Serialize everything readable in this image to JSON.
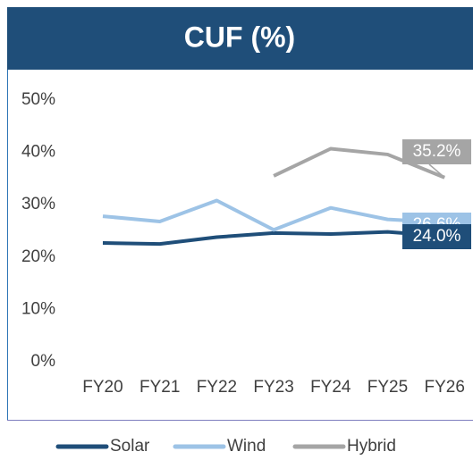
{
  "chart_data": {
    "type": "line",
    "title": "CUF (%)",
    "categories": [
      "FY20",
      "FY21",
      "FY22",
      "FY23",
      "FY24",
      "FY25",
      "FY26"
    ],
    "series": [
      {
        "name": "Solar",
        "color": "#1f4e79",
        "values": [
          22.7,
          22.5,
          23.8,
          24.6,
          24.4,
          24.8,
          24.0
        ],
        "value_labels": [
          null,
          null,
          null,
          null,
          null,
          null,
          "24.0%"
        ]
      },
      {
        "name": "Wind",
        "color": "#9dc3e6",
        "values": [
          27.8,
          26.8,
          30.8,
          25.2,
          29.4,
          27.2,
          26.6
        ],
        "value_labels": [
          null,
          null,
          null,
          null,
          null,
          null,
          "26.6%"
        ]
      },
      {
        "name": "Hybrid",
        "color": "#a5a5a5",
        "values": [
          null,
          null,
          null,
          35.5,
          40.7,
          39.6,
          35.2
        ],
        "value_labels": [
          null,
          null,
          null,
          null,
          null,
          null,
          "35.2%"
        ]
      }
    ],
    "ylim": [
      0,
      50
    ],
    "yticks": [
      {
        "value": 0,
        "label": "0%"
      },
      {
        "value": 10,
        "label": "10%"
      },
      {
        "value": 20,
        "label": "20%"
      },
      {
        "value": 30,
        "label": "30%"
      },
      {
        "value": 40,
        "label": "40%"
      },
      {
        "value": 50,
        "label": "50%"
      }
    ],
    "grid": false,
    "legend": "bottom"
  }
}
